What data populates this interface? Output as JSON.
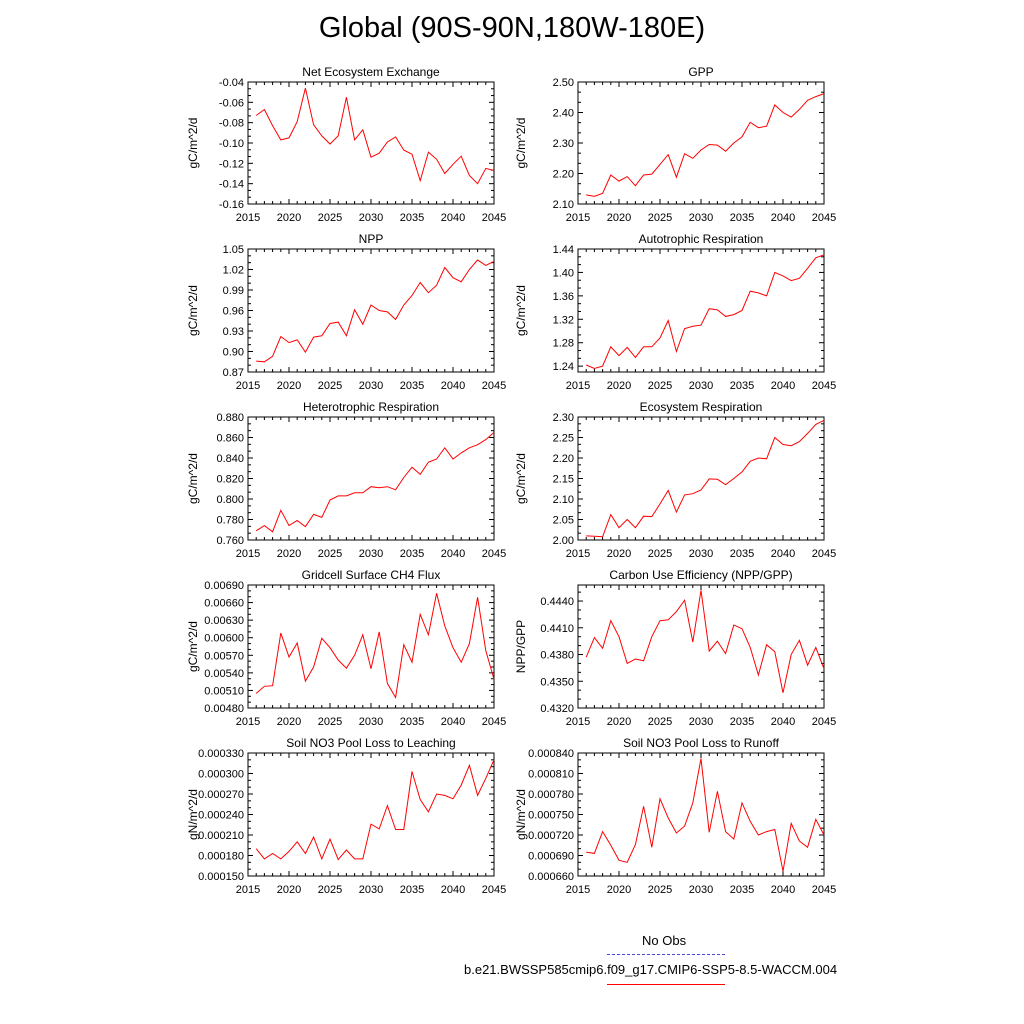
{
  "page_title": "Global (90S-90N,180W-180E)",
  "legend": {
    "obs_label": "No Obs",
    "obs_color": "#4a4ad8",
    "model_label": "b.e21.BWSSP585cmip6.f09_g17.CMIP6-SSP5-8.5-WACCM.004",
    "model_color": "#ff0000"
  },
  "chart_data": [
    {
      "type": "line",
      "title": "Net Ecosystem Exchange",
      "ylabel": "gC/m^2/d",
      "xlabel": "",
      "xlim": [
        2015,
        2045
      ],
      "xticks": [
        2015,
        2020,
        2025,
        2030,
        2035,
        2040,
        2045
      ],
      "ylim": [
        -0.16,
        -0.04
      ],
      "yticks": [
        "-0.16",
        "-0.14",
        "-0.12",
        "-0.10",
        "-0.08",
        "-0.06",
        "-0.04"
      ],
      "series": [
        {
          "name": "b.e21.BWSSP585cmip6.f09_g17.CMIP6-SSP5-8.5-WACCM.004",
          "x": [
            2016,
            2017,
            2018,
            2019,
            2020,
            2021,
            2022,
            2023,
            2024,
            2025,
            2026,
            2027,
            2028,
            2029,
            2030,
            2031,
            2032,
            2033,
            2034,
            2035,
            2036,
            2037,
            2038,
            2039,
            2040,
            2041,
            2042,
            2043,
            2044,
            2045
          ],
          "values": [
            -0.073,
            -0.067,
            -0.083,
            -0.097,
            -0.095,
            -0.079,
            -0.046,
            -0.082,
            -0.093,
            -0.101,
            -0.093,
            -0.055,
            -0.097,
            -0.087,
            -0.114,
            -0.11,
            -0.099,
            -0.094,
            -0.107,
            -0.111,
            -0.137,
            -0.109,
            -0.116,
            -0.13,
            -0.121,
            -0.113,
            -0.132,
            -0.14,
            -0.125,
            -0.127
          ]
        }
      ]
    },
    {
      "type": "line",
      "title": "GPP",
      "ylabel": "gC/m^2/d",
      "xlabel": "",
      "xlim": [
        2015,
        2045
      ],
      "xticks": [
        2015,
        2020,
        2025,
        2030,
        2035,
        2040,
        2045
      ],
      "ylim": [
        2.1,
        2.5
      ],
      "yticks": [
        "2.10",
        "2.20",
        "2.30",
        "2.40",
        "2.50"
      ],
      "series": [
        {
          "name": "b.e21.BWSSP585cmip6.f09_g17.CMIP6-SSP5-8.5-WACCM.004",
          "x": [
            2016,
            2017,
            2018,
            2019,
            2020,
            2021,
            2022,
            2023,
            2024,
            2025,
            2026,
            2027,
            2028,
            2029,
            2030,
            2031,
            2032,
            2033,
            2034,
            2035,
            2036,
            2037,
            2038,
            2039,
            2040,
            2041,
            2042,
            2043,
            2044,
            2045
          ],
          "values": [
            2.13,
            2.125,
            2.135,
            2.195,
            2.175,
            2.19,
            2.16,
            2.195,
            2.198,
            2.23,
            2.262,
            2.188,
            2.265,
            2.25,
            2.277,
            2.295,
            2.293,
            2.273,
            2.3,
            2.32,
            2.368,
            2.35,
            2.355,
            2.425,
            2.4,
            2.385,
            2.41,
            2.44,
            2.452,
            2.462
          ]
        }
      ]
    },
    {
      "type": "line",
      "title": "NPP",
      "ylabel": "gC/m^2/d",
      "xlabel": "",
      "xlim": [
        2015,
        2045
      ],
      "xticks": [
        2015,
        2020,
        2025,
        2030,
        2035,
        2040,
        2045
      ],
      "ylim": [
        0.87,
        1.05
      ],
      "yticks": [
        "0.87",
        "0.90",
        "0.93",
        "0.96",
        "0.99",
        "1.02",
        "1.05"
      ],
      "series": [
        {
          "name": "b.e21.BWSSP585cmip6.f09_g17.CMIP6-SSP5-8.5-WACCM.004",
          "x": [
            2016,
            2017,
            2018,
            2019,
            2020,
            2021,
            2022,
            2023,
            2024,
            2025,
            2026,
            2027,
            2028,
            2029,
            2030,
            2031,
            2032,
            2033,
            2034,
            2035,
            2036,
            2037,
            2038,
            2039,
            2040,
            2041,
            2042,
            2043,
            2044,
            2045
          ],
          "values": [
            0.886,
            0.885,
            0.893,
            0.922,
            0.913,
            0.917,
            0.899,
            0.921,
            0.923,
            0.941,
            0.943,
            0.923,
            0.961,
            0.94,
            0.968,
            0.96,
            0.958,
            0.947,
            0.968,
            0.982,
            1.001,
            0.986,
            0.997,
            1.023,
            1.008,
            1.002,
            1.02,
            1.034,
            1.026,
            1.032
          ]
        }
      ]
    },
    {
      "type": "line",
      "title": "Autotrophic Respiration",
      "ylabel": "gC/m^2/d",
      "xlabel": "",
      "xlim": [
        2015,
        2045
      ],
      "xticks": [
        2015,
        2020,
        2025,
        2030,
        2035,
        2040,
        2045
      ],
      "ylim": [
        1.23,
        1.44
      ],
      "yticks": [
        "1.24",
        "1.28",
        "1.32",
        "1.36",
        "1.40",
        "1.44"
      ],
      "series": [
        {
          "name": "b.e21.BWSSP585cmip6.f09_g17.CMIP6-SSP5-8.5-WACCM.004",
          "x": [
            2016,
            2017,
            2018,
            2019,
            2020,
            2021,
            2022,
            2023,
            2024,
            2025,
            2026,
            2027,
            2028,
            2029,
            2030,
            2031,
            2032,
            2033,
            2034,
            2035,
            2036,
            2037,
            2038,
            2039,
            2040,
            2041,
            2042,
            2043,
            2044,
            2045
          ],
          "values": [
            1.242,
            1.236,
            1.24,
            1.273,
            1.258,
            1.272,
            1.255,
            1.273,
            1.273,
            1.288,
            1.318,
            1.265,
            1.304,
            1.308,
            1.31,
            1.338,
            1.336,
            1.325,
            1.328,
            1.335,
            1.368,
            1.365,
            1.36,
            1.4,
            1.394,
            1.386,
            1.39,
            1.407,
            1.425,
            1.43
          ]
        }
      ]
    },
    {
      "type": "line",
      "title": "Heterotrophic Respiration",
      "ylabel": "gC/m^2/d",
      "xlabel": "",
      "xlim": [
        2015,
        2045
      ],
      "xticks": [
        2015,
        2020,
        2025,
        2030,
        2035,
        2040,
        2045
      ],
      "ylim": [
        0.76,
        0.88
      ],
      "yticks": [
        "0.760",
        "0.780",
        "0.800",
        "0.820",
        "0.840",
        "0.860",
        "0.880"
      ],
      "series": [
        {
          "name": "b.e21.BWSSP585cmip6.f09_g17.CMIP6-SSP5-8.5-WACCM.004",
          "x": [
            2016,
            2017,
            2018,
            2019,
            2020,
            2021,
            2022,
            2023,
            2024,
            2025,
            2026,
            2027,
            2028,
            2029,
            2030,
            2031,
            2032,
            2033,
            2034,
            2035,
            2036,
            2037,
            2038,
            2039,
            2040,
            2041,
            2042,
            2043,
            2044,
            2045
          ],
          "values": [
            0.769,
            0.774,
            0.768,
            0.789,
            0.774,
            0.779,
            0.773,
            0.785,
            0.782,
            0.799,
            0.803,
            0.803,
            0.806,
            0.806,
            0.812,
            0.811,
            0.812,
            0.809,
            0.821,
            0.831,
            0.824,
            0.836,
            0.839,
            0.85,
            0.839,
            0.845,
            0.85,
            0.853,
            0.858,
            0.865
          ]
        }
      ]
    },
    {
      "type": "line",
      "title": "Ecosystem Respiration",
      "ylabel": "gC/m^2/d",
      "xlabel": "",
      "xlim": [
        2015,
        2045
      ],
      "xticks": [
        2015,
        2020,
        2025,
        2030,
        2035,
        2040,
        2045
      ],
      "ylim": [
        2.0,
        2.3
      ],
      "yticks": [
        "2.00",
        "2.05",
        "2.10",
        "2.15",
        "2.20",
        "2.25",
        "2.30"
      ],
      "series": [
        {
          "name": "b.e21.BWSSP585cmip6.f09_g17.CMIP6-SSP5-8.5-WACCM.004",
          "x": [
            2016,
            2017,
            2018,
            2019,
            2020,
            2021,
            2022,
            2023,
            2024,
            2025,
            2026,
            2027,
            2028,
            2029,
            2030,
            2031,
            2032,
            2033,
            2034,
            2035,
            2036,
            2037,
            2038,
            2039,
            2040,
            2041,
            2042,
            2043,
            2044,
            2045
          ],
          "values": [
            2.01,
            2.009,
            2.008,
            2.062,
            2.03,
            2.05,
            2.03,
            2.058,
            2.057,
            2.088,
            2.121,
            2.068,
            2.11,
            2.113,
            2.122,
            2.149,
            2.148,
            2.135,
            2.15,
            2.166,
            2.192,
            2.2,
            2.198,
            2.25,
            2.233,
            2.23,
            2.24,
            2.26,
            2.282,
            2.292
          ]
        }
      ]
    },
    {
      "type": "line",
      "title": "Gridcell Surface CH4 Flux",
      "ylabel": "gC/m^2/d",
      "xlabel": "",
      "xlim": [
        2015,
        2045
      ],
      "xticks": [
        2015,
        2020,
        2025,
        2030,
        2035,
        2040,
        2045
      ],
      "ylim": [
        0.0048,
        0.0069
      ],
      "yticks": [
        "0.00480",
        "0.00510",
        "0.00540",
        "0.00570",
        "0.00600",
        "0.00630",
        "0.00660",
        "0.00690"
      ],
      "series": [
        {
          "name": "b.e21.BWSSP585cmip6.f09_g17.CMIP6-SSP5-8.5-WACCM.004",
          "x": [
            2016,
            2017,
            2018,
            2019,
            2020,
            2021,
            2022,
            2023,
            2024,
            2025,
            2026,
            2027,
            2028,
            2029,
            2030,
            2031,
            2032,
            2033,
            2034,
            2035,
            2036,
            2037,
            2038,
            2039,
            2040,
            2041,
            2042,
            2043,
            2044,
            2045
          ],
          "values": [
            0.00505,
            0.00517,
            0.00518,
            0.00608,
            0.00567,
            0.00591,
            0.00526,
            0.0055,
            0.00599,
            0.00583,
            0.00562,
            0.00548,
            0.0057,
            0.00605,
            0.00547,
            0.0061,
            0.00522,
            0.00498,
            0.00588,
            0.00558,
            0.0064,
            0.00605,
            0.00676,
            0.0062,
            0.00583,
            0.00558,
            0.0059,
            0.00669,
            0.00578,
            0.00529
          ]
        }
      ]
    },
    {
      "type": "line",
      "title": "Carbon Use Efficiency (NPP/GPP)",
      "ylabel": "NPP/GPP",
      "xlabel": "",
      "xlim": [
        2015,
        2045
      ],
      "xticks": [
        2015,
        2020,
        2025,
        2030,
        2035,
        2040,
        2045
      ],
      "ylim": [
        0.432,
        0.4458
      ],
      "yticks": [
        "0.4320",
        "0.4350",
        "0.4380",
        "0.4410",
        "0.4440"
      ],
      "series": [
        {
          "name": "b.e21.BWSSP585cmip6.f09_g17.CMIP6-SSP5-8.5-WACCM.004",
          "x": [
            2016,
            2017,
            2018,
            2019,
            2020,
            2021,
            2022,
            2023,
            2024,
            2025,
            2026,
            2027,
            2028,
            2029,
            2030,
            2031,
            2032,
            2033,
            2034,
            2035,
            2036,
            2037,
            2038,
            2039,
            2040,
            2041,
            2042,
            2043,
            2044,
            2045
          ],
          "values": [
            0.4377,
            0.4399,
            0.4387,
            0.4418,
            0.44,
            0.437,
            0.4375,
            0.4373,
            0.44,
            0.4418,
            0.4419,
            0.4428,
            0.4441,
            0.4394,
            0.4452,
            0.4384,
            0.4395,
            0.4381,
            0.4413,
            0.4409,
            0.4388,
            0.4357,
            0.4391,
            0.4383,
            0.4337,
            0.438,
            0.4396,
            0.4368,
            0.4388,
            0.4364
          ]
        }
      ]
    },
    {
      "type": "line",
      "title": "Soil NO3 Pool Loss to Leaching",
      "ylabel": "gN/m^2/d",
      "xlabel": "",
      "xlim": [
        2015,
        2045
      ],
      "xticks": [
        2015,
        2020,
        2025,
        2030,
        2035,
        2040,
        2045
      ],
      "ylim": [
        0.00015,
        0.00033
      ],
      "yticks": [
        "0.000150",
        "0.000180",
        "0.000210",
        "0.000240",
        "0.000270",
        "0.000300",
        "0.000330"
      ],
      "series": [
        {
          "name": "b.e21.BWSSP585cmip6.f09_g17.CMIP6-SSP5-8.5-WACCM.004",
          "x": [
            2016,
            2017,
            2018,
            2019,
            2020,
            2021,
            2022,
            2023,
            2024,
            2025,
            2026,
            2027,
            2028,
            2029,
            2030,
            2031,
            2032,
            2033,
            2034,
            2035,
            2036,
            2037,
            2038,
            2039,
            2040,
            2041,
            2042,
            2043,
            2044,
            2045
          ],
          "values": [
            0.00019,
            0.000175,
            0.000183,
            0.000175,
            0.000186,
            0.0002,
            0.000183,
            0.000207,
            0.000175,
            0.000204,
            0.000174,
            0.000188,
            0.000175,
            0.000175,
            0.000226,
            0.000219,
            0.000253,
            0.000218,
            0.000218,
            0.000303,
            0.000262,
            0.000244,
            0.00027,
            0.000268,
            0.000263,
            0.000283,
            0.000312,
            0.000268,
            0.000293,
            0.00032
          ]
        }
      ]
    },
    {
      "type": "line",
      "title": "Soil NO3 Pool Loss to Runoff",
      "ylabel": "gN/m^2/d",
      "xlabel": "",
      "xlim": [
        2015,
        2045
      ],
      "xticks": [
        2015,
        2020,
        2025,
        2030,
        2035,
        2040,
        2045
      ],
      "ylim": [
        0.00066,
        0.00084
      ],
      "yticks": [
        "0.000660",
        "0.000690",
        "0.000720",
        "0.000750",
        "0.000780",
        "0.000810",
        "0.000840"
      ],
      "series": [
        {
          "name": "b.e21.BWSSP585cmip6.f09_g17.CMIP6-SSP5-8.5-WACCM.004",
          "x": [
            2016,
            2017,
            2018,
            2019,
            2020,
            2021,
            2022,
            2023,
            2024,
            2025,
            2026,
            2027,
            2028,
            2029,
            2030,
            2031,
            2032,
            2033,
            2034,
            2035,
            2036,
            2037,
            2038,
            2039,
            2040,
            2041,
            2042,
            2043,
            2044,
            2045
          ],
          "values": [
            0.000695,
            0.000693,
            0.000725,
            0.000705,
            0.000683,
            0.00068,
            0.000706,
            0.000762,
            0.000702,
            0.000773,
            0.000745,
            0.000723,
            0.000733,
            0.000767,
            0.000832,
            0.000724,
            0.000784,
            0.000725,
            0.000714,
            0.000767,
            0.00074,
            0.00072,
            0.000725,
            0.000728,
            0.000667,
            0.000737,
            0.000711,
            0.000702,
            0.000743,
            0.00072
          ]
        }
      ]
    }
  ]
}
